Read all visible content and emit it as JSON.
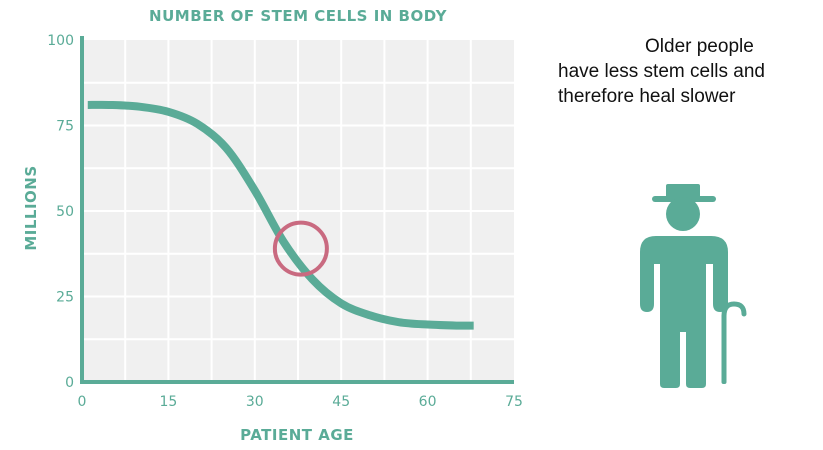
{
  "colors": {
    "accent": "#5aab97",
    "highlight": "#c96a80",
    "plot_bg": "#f0f0f0",
    "grid": "#ffffff"
  },
  "chart_data": {
    "type": "line",
    "title": "NUMBER OF STEM CELLS IN BODY",
    "xlabel": "PATIENT AGE",
    "ylabel": "MILLIONS",
    "xlim": [
      0,
      75
    ],
    "ylim": [
      0,
      100
    ],
    "x_ticks": [
      0,
      15,
      30,
      45,
      60,
      75
    ],
    "y_ticks": [
      0,
      25,
      50,
      75,
      100
    ],
    "grid": true,
    "series": [
      {
        "x": [
          1,
          5,
          10,
          15,
          20,
          25,
          30,
          35,
          40,
          45,
          50,
          55,
          60,
          65,
          68
        ],
        "y": [
          81,
          81,
          80.5,
          79,
          75.5,
          68.5,
          56,
          41,
          30,
          23,
          19.5,
          17.5,
          16.8,
          16.5,
          16.5
        ]
      }
    ],
    "annotations": [
      {
        "type": "circle",
        "x": 38,
        "y": 39
      }
    ]
  },
  "note": {
    "line1": "Older people",
    "line2": "have less stem cells and",
    "line3": "therefore heal slower"
  },
  "illustration": {
    "icon": "elderly-person-with-cane-icon"
  }
}
